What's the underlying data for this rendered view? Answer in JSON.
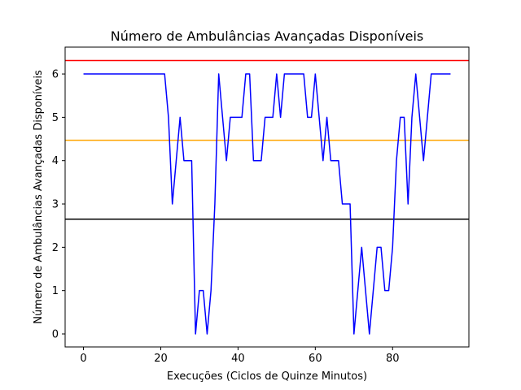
{
  "chart_data": {
    "type": "line",
    "title": "Número de Ambulâncias Avançadas Disponíveis",
    "xlabel": "Execuções (Ciclos de Quinze Minutos)",
    "ylabel": "Número de Ambulâncias Avançadas Disponíveis",
    "xlim": [
      -4.75,
      99.75
    ],
    "ylim": [
      -0.3,
      6.62
    ],
    "xticks": [
      0,
      20,
      40,
      60,
      80
    ],
    "yticks": [
      0,
      1,
      2,
      3,
      4,
      5,
      6
    ],
    "grid": false,
    "series": [
      {
        "color": "#0000ff",
        "x": [
          0,
          1,
          2,
          3,
          4,
          5,
          6,
          7,
          8,
          9,
          10,
          11,
          12,
          13,
          14,
          15,
          16,
          17,
          18,
          19,
          20,
          21,
          22,
          23,
          24,
          25,
          26,
          27,
          28,
          29,
          30,
          31,
          32,
          33,
          34,
          35,
          36,
          37,
          38,
          39,
          40,
          41,
          42,
          43,
          44,
          45,
          46,
          47,
          48,
          49,
          50,
          51,
          52,
          53,
          54,
          55,
          56,
          57,
          58,
          59,
          60,
          61,
          62,
          63,
          64,
          65,
          66,
          67,
          68,
          69,
          70,
          71,
          72,
          73,
          74,
          75,
          76,
          77,
          78,
          79,
          80,
          81,
          82,
          83,
          84,
          85,
          86,
          87,
          88,
          89,
          90,
          91,
          92,
          93,
          94,
          95
        ],
        "values": [
          6,
          6,
          6,
          6,
          6,
          6,
          6,
          6,
          6,
          6,
          6,
          6,
          6,
          6,
          6,
          6,
          6,
          6,
          6,
          6,
          6,
          6,
          5,
          3,
          4,
          5,
          4,
          4,
          4,
          0,
          1,
          1,
          0,
          1,
          3,
          6,
          5,
          4,
          5,
          5,
          5,
          5,
          6,
          6,
          4,
          4,
          4,
          5,
          5,
          5,
          6,
          5,
          6,
          6,
          6,
          6,
          6,
          6,
          5,
          5,
          6,
          5,
          4,
          5,
          4,
          4,
          4,
          3,
          3,
          3,
          0,
          1,
          2,
          1,
          0,
          1,
          2,
          2,
          1,
          1,
          2,
          4,
          5,
          5,
          3,
          5,
          6,
          5,
          4,
          5,
          6,
          6,
          6,
          6,
          6,
          6
        ]
      }
    ],
    "reference_lines": [
      {
        "axis": "y",
        "value": 6.31,
        "color": "#ff0000"
      },
      {
        "axis": "y",
        "value": 4.47,
        "color": "#ffa500"
      },
      {
        "axis": "y",
        "value": 2.65,
        "color": "#000000"
      }
    ]
  }
}
